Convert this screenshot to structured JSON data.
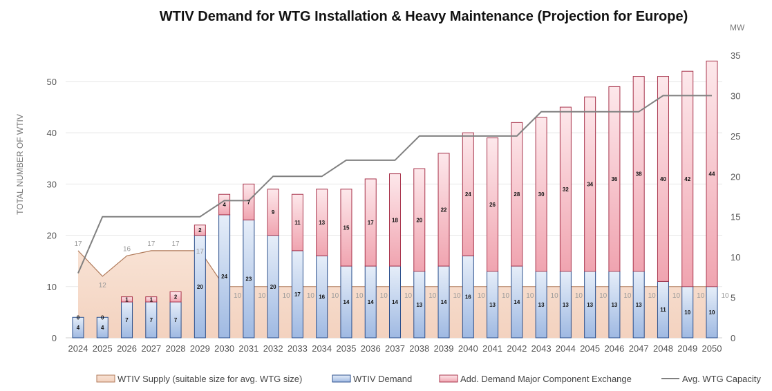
{
  "chart_data": {
    "type": "bar",
    "title": "WTIV Demand for WTG Installation & Heavy Maintenance (Projection for Europe)",
    "ylabel": "TOTAL NUMBER OF WTIV",
    "y2label": "MW",
    "ylim": [
      0,
      55
    ],
    "y2lim": [
      0,
      35
    ],
    "yticks": [
      "0",
      "10",
      "20",
      "30",
      "40",
      "50"
    ],
    "y2ticks": [
      "0",
      "5",
      "10",
      "15",
      "20",
      "25",
      "30",
      "35"
    ],
    "categories": [
      "2024",
      "2025",
      "2026",
      "2027",
      "2028",
      "2029",
      "2030",
      "2031",
      "2032",
      "2033",
      "2034",
      "2035",
      "2036",
      "2037",
      "2038",
      "2039",
      "2040",
      "2041",
      "2042",
      "2043",
      "2044",
      "2045",
      "2046",
      "2047",
      "2048",
      "2049",
      "2050"
    ],
    "series": [
      {
        "name": "WTIV Supply (suitable size for avg. WTG size)",
        "kind": "area",
        "values": [
          17,
          12,
          16,
          17,
          17,
          17,
          10,
          10,
          10,
          10,
          10,
          10,
          10,
          10,
          10,
          10,
          10,
          10,
          10,
          10,
          10,
          10,
          10,
          10,
          10,
          10,
          10
        ],
        "color": "#f6dccb",
        "stroke": "#b07a5a"
      },
      {
        "name": "WTIV Demand",
        "kind": "bar",
        "values": [
          4,
          4,
          7,
          7,
          7,
          20,
          24,
          23,
          20,
          17,
          16,
          14,
          14,
          14,
          13,
          14,
          16,
          13,
          14,
          13,
          13,
          13,
          13,
          13,
          11,
          10,
          10
        ],
        "color": "#a9c3e6",
        "stroke": "#2b4f8c"
      },
      {
        "name": "Add. Demand Major Component Exchange",
        "kind": "bar",
        "values": [
          0,
          0,
          1,
          1,
          2,
          2,
          4,
          7,
          9,
          11,
          13,
          15,
          17,
          18,
          20,
          22,
          24,
          26,
          28,
          30,
          32,
          34,
          36,
          38,
          40,
          42,
          44
        ],
        "color": "#f5bcc4",
        "stroke": "#a8344c"
      },
      {
        "name": "Avg. WTG Capacity",
        "kind": "line",
        "axis": "right",
        "values": [
          8,
          15,
          15,
          15,
          15,
          15,
          17,
          17,
          20,
          20,
          20,
          22,
          22,
          22,
          25,
          25,
          25,
          25,
          25,
          28,
          28,
          28,
          28,
          28,
          30,
          30,
          30
        ],
        "color": "#808080"
      }
    ],
    "legend_position": "bottom",
    "grid": true
  }
}
